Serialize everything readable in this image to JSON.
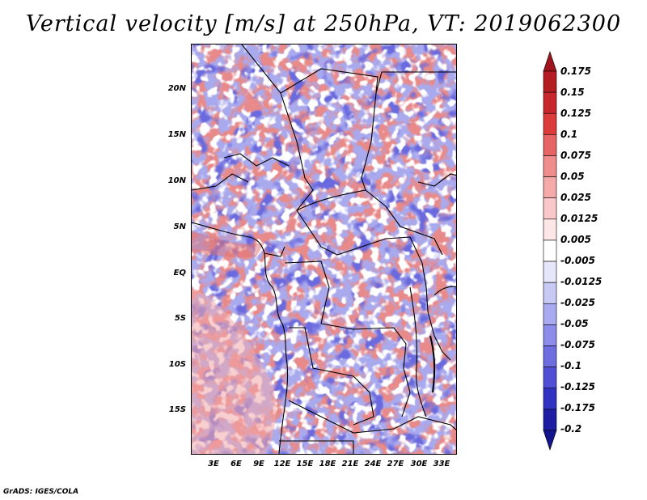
{
  "title": "Vertical velocity [m/s] at 250hPa, VT: 2019062300",
  "credit": "GrADS: IGES/COLA",
  "map": {
    "lat_labels": [
      "20N",
      "15N",
      "10N",
      "5N",
      "EQ",
      "5S",
      "10S",
      "15S"
    ],
    "lon_labels": [
      "3E",
      "6E",
      "9E",
      "12E",
      "15E",
      "18E",
      "21E",
      "24E",
      "27E",
      "30E",
      "33E"
    ]
  },
  "colorbar": {
    "levels": [
      "0.175",
      "0.15",
      "0.125",
      "0.1",
      "0.075",
      "0.05",
      "0.025",
      "0.0125",
      "0.005",
      "-0.005",
      "-0.0125",
      "-0.025",
      "-0.05",
      "-0.075",
      "-0.1",
      "-0.125",
      "-0.175",
      "-0.2"
    ],
    "colors": [
      "#a0141e",
      "#b41e23",
      "#c8282d",
      "#dc3c3c",
      "#e66464",
      "#ef8c8c",
      "#f5aaaa",
      "#fac8c8",
      "#fde6e6",
      "#ffffff",
      "#e6e6fa",
      "#c8c8f5",
      "#aaaaf0",
      "#8c8ceb",
      "#6e6ee1",
      "#5050d7",
      "#3232c3",
      "#1e1ea5",
      "#14148c"
    ]
  }
}
